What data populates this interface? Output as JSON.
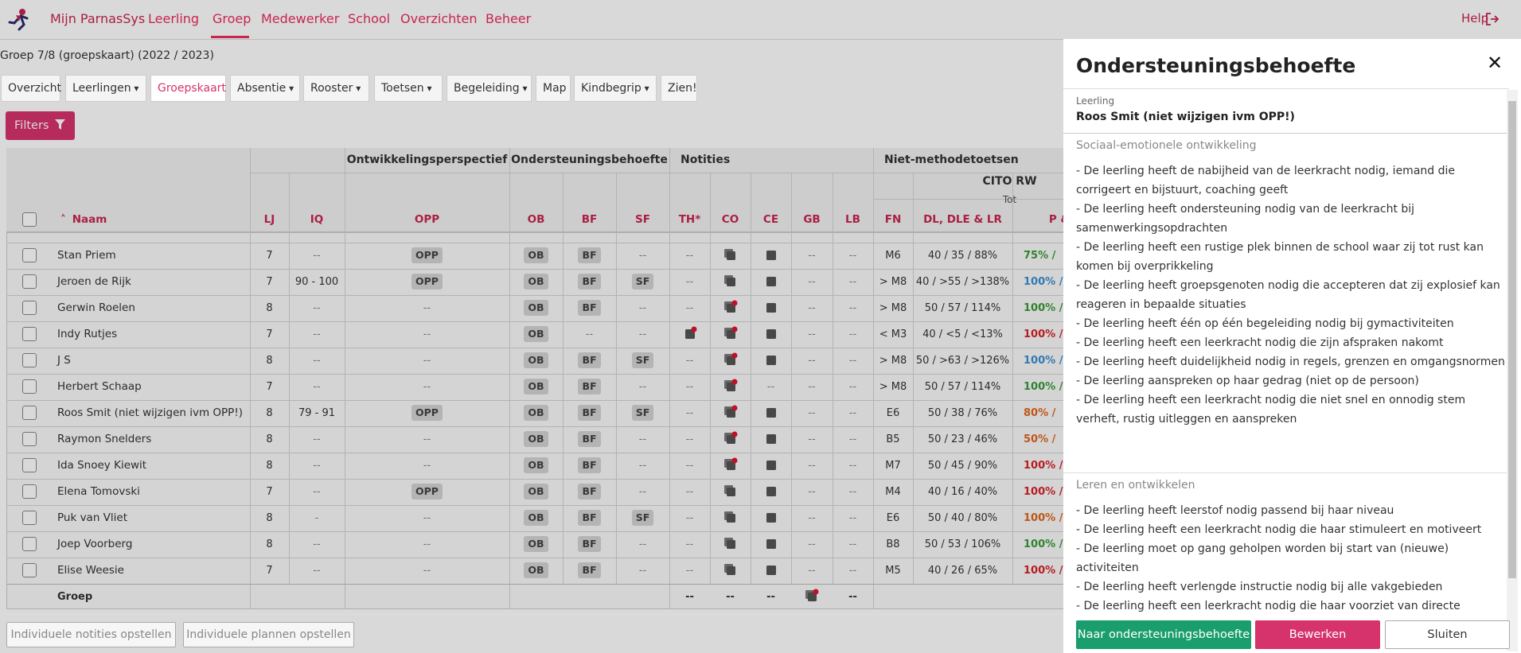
{
  "nav": {
    "brand": "Mijn ParnasSys",
    "items": [
      "Leerling",
      "Groep",
      "Medewerker",
      "School",
      "Overzichten",
      "Beheer"
    ],
    "help": "Help"
  },
  "breadcrumb": "Groep 7/8 (groepskaart) (2022 / 2023)",
  "tabs": [
    "Overzicht",
    "Leerlingen",
    "Groepskaart",
    "Absentie",
    "Rooster",
    "Toetsen",
    "Begeleiding",
    "Map",
    "Kindbegrip",
    "Zien!"
  ],
  "filters": "Filters",
  "table": {
    "group_headers": [
      "Ontwikkelingsperspectief",
      "Ondersteuningsbehoefte",
      "Notities",
      "Niet-methodetoetsen"
    ],
    "subheader": "CITO RW",
    "subsubheader": "Tot",
    "columns": [
      "Naam",
      "LJ",
      "IQ",
      "OPP",
      "OB",
      "BF",
      "SF",
      "TH*",
      "CO",
      "CE",
      "GB",
      "LB",
      "FN",
      "DL, DLE & LR",
      "P &"
    ],
    "rows": [
      {
        "name": "Stan Priem",
        "cells": [
          "7",
          "--",
          "OPP",
          "OB",
          "BF",
          "--",
          "--",
          null,
          null,
          "--",
          "--",
          "M6",
          "40 / 35 / 88%",
          "75% /"
        ],
        "p_color": "#3a9a3a"
      },
      {
        "name": "Jeroen de Rijk",
        "cells": [
          "7",
          "90 - 100",
          "OPP",
          "OB",
          "BF",
          "SF",
          "--",
          null,
          null,
          "--",
          "--",
          "> M8",
          "40 / >55 / >138%",
          "100% /"
        ],
        "p_color": "#3d8fd1"
      },
      {
        "name": "Gerwin Roelen",
        "cells": [
          "8",
          "--",
          "--",
          "OB",
          "BF",
          "--",
          "--",
          null,
          null,
          "--",
          "--",
          "> M8",
          "50 / 57 / 114%",
          "100% /"
        ],
        "p_color": "#3a9a3a"
      },
      {
        "name": "Indy Rutjes",
        "cells": [
          "7",
          "--",
          "--",
          "OB",
          "--",
          "--",
          null,
          null,
          null,
          "--",
          "--",
          "< M3",
          "40 / <5 / <13%",
          "100% /"
        ],
        "p_color": "#d8232a"
      },
      {
        "name": "J S",
        "cells": [
          "8",
          "--",
          "--",
          "OB",
          "BF",
          "SF",
          "--",
          null,
          null,
          "--",
          "--",
          "> M8",
          "50 / >63 / >126%",
          "100% /"
        ],
        "p_color": "#3d8fd1"
      },
      {
        "name": "Herbert Schaap",
        "cells": [
          "7",
          "--",
          "--",
          "OB",
          "BF",
          "--",
          "--",
          null,
          "--",
          "--",
          "--",
          "> M8",
          "50 / 57 / 114%",
          "100% /"
        ],
        "p_color": "#3a9a3a"
      },
      {
        "name": "Roos Smit (niet wijzigen ivm OPP!)",
        "cells": [
          "8",
          "79 - 91",
          "OPP",
          "OB",
          "BF",
          "SF",
          "--",
          null,
          null,
          "--",
          "--",
          "E6",
          "50 / 38 / 76%",
          "80% /"
        ],
        "p_color": "#e0661e"
      },
      {
        "name": "Raymon Snelders",
        "cells": [
          "8",
          "--",
          "--",
          "OB",
          "BF",
          "--",
          "--",
          null,
          null,
          "--",
          "--",
          "B5",
          "50 / 23 / 46%",
          "50% /"
        ],
        "p_color": "#e0661e"
      },
      {
        "name": "Ida Snoey Kiewit",
        "cells": [
          "8",
          "--",
          "--",
          "OB",
          "BF",
          "--",
          "--",
          null,
          null,
          "--",
          "--",
          "M7",
          "50 / 45 / 90%",
          "100% /"
        ],
        "p_color": "#d8232a"
      },
      {
        "name": "Elena Tomovski",
        "cells": [
          "7",
          "--",
          "OPP",
          "OB",
          "BF",
          "--",
          "--",
          null,
          null,
          "--",
          "--",
          "M4",
          "40 / 16 / 40%",
          "100% /"
        ],
        "p_color": "#d8232a"
      },
      {
        "name": "Puk van Vliet",
        "cells": [
          "8",
          "-",
          "--",
          "OB",
          "BF",
          "SF",
          "--",
          null,
          null,
          "--",
          "--",
          "E6",
          "50 / 40 / 80%",
          "100% /"
        ],
        "p_color": "#e0661e"
      },
      {
        "name": "Joep Voorberg",
        "cells": [
          "8",
          "--",
          "--",
          "OB",
          "BF",
          "--",
          "--",
          null,
          null,
          "--",
          "--",
          "B8",
          "50 / 53 / 106%",
          "100% /"
        ],
        "p_color": "#3a9a3a"
      },
      {
        "name": "Elise Weesie",
        "cells": [
          "7",
          "--",
          "--",
          "OB",
          "BF",
          "--",
          "--",
          null,
          null,
          "--",
          "--",
          "M5",
          "40 / 26 / 65%",
          "100% /"
        ],
        "p_color": "#d8232a"
      }
    ],
    "footer": {
      "label": "Groep",
      "cells": [
        "--",
        "--",
        "--",
        null,
        "--"
      ]
    }
  },
  "buttons": [
    "Individuele notities opstellen",
    "Individuele plannen opstellen"
  ],
  "panel": {
    "title": "Ondersteuningsbehoefte",
    "student_label": "Leerling",
    "student": "Roos Smit (niet wijzigen ivm OPP!)",
    "sections": [
      {
        "title": "Sociaal-emotionele ontwikkeling",
        "items": [
          "- De leerling heeft de nabijheid van de leerkracht nodig, iemand die corrigeert en bijstuurt, coaching geeft",
          "- De leerling heeft ondersteuning nodig van de leerkracht bij samenwerkingsopdrachten",
          "- De leerling heeft een rustige plek binnen de school waar zij tot rust kan komen bij overprikkeling",
          "- De leerling heeft groepsgenoten nodig die accepteren dat zij explosief kan reageren in bepaalde situaties",
          "- De leerling heeft één op één begeleiding nodig bij gymactiviteiten",
          "- De leerling heeft een leerkracht nodig die zijn afspraken nakomt",
          "- De leerling heeft duidelijkheid nodig in regels, grenzen en omgangsnormen",
          "- De leerling aanspreken op haar gedrag (niet op de persoon)",
          "- De leerling heeft een leerkracht nodig die niet snel en onnodig stem verheft, rustig uitleggen en aanspreken"
        ]
      },
      {
        "title": "Leren en ontwikkelen",
        "items": [
          "- De leerling heeft leerstof nodig passend bij haar niveau",
          "- De leerling heeft een leerkracht nodig die haar stimuleert en motiveert",
          "- De leerling moet op gang geholpen worden bij start van (nieuwe) activiteiten",
          "- De leerling heeft verlengde instructie nodig bij alle vakgebieden",
          "- De leerling heeft een leerkracht nodig die haar voorziet van directe positieve feedback, zowel op product als proces"
        ]
      }
    ],
    "buttons": [
      "Naar ondersteuningsbehoefte",
      "Bewerken",
      "Sluiten"
    ]
  }
}
